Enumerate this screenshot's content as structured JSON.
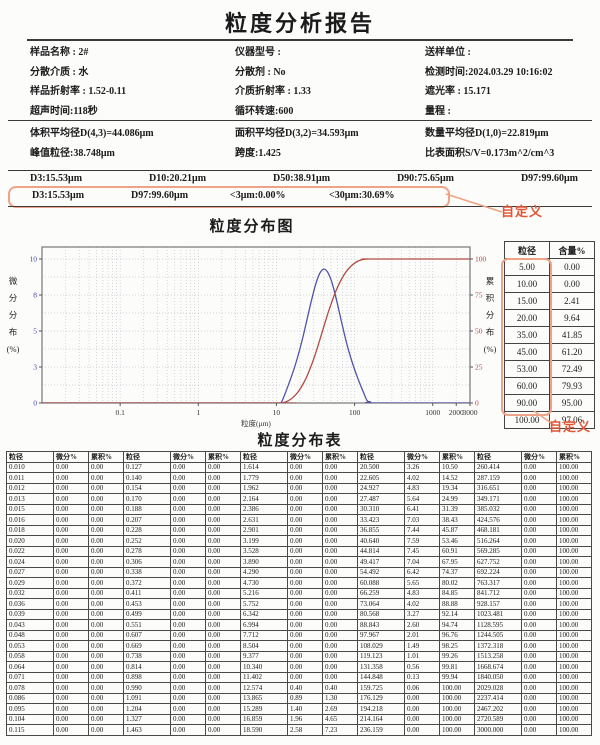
{
  "report": {
    "title": "粒度分析报告",
    "info_rows": [
      [
        "样品名称 : 2#",
        "仪器型号 :",
        "送样单位 :"
      ],
      [
        "分散介质 : 水",
        "分散剂 : No",
        "检测时间:2024.03.29 10:16:02"
      ],
      [
        "样品折射率 : 1.52-0.11",
        "介质折射率 : 1.33",
        "遮光率 : 15.171"
      ],
      [
        "超声时间:118秒",
        "循环转速:600",
        "量程 :"
      ]
    ],
    "summary_rows": [
      [
        "体积平均径D(4,3)=44.086μm",
        "面积平均径D(3,2)=34.593μm",
        "数量平均径D(1,0)=22.819μm"
      ],
      [
        "峰值粒径:38.748μm",
        "跨度:1.425",
        "比表面积S/V=0.173m^2/cm^3"
      ]
    ],
    "percentiles": [
      "D3:15.53μm",
      "D10:20.21μm",
      "D50:38.91μm",
      "D90:75.65μm",
      "D97:99.60μm"
    ],
    "custom_row": [
      "D3:15.53μm",
      "D97:99.60μm",
      "<3μm:0.00%",
      "<30μm:30.69%"
    ],
    "custom_label": "自定义"
  },
  "colors": {
    "accent_box": "#efa285",
    "accent_text": "#e25535",
    "curve_diff": "#5152a8",
    "curve_cum": "#b24b3f"
  },
  "chart_data": {
    "type": "line",
    "title": "粒度分布图",
    "xlabel": "粒度(μm)",
    "ylabel_left": "微分分布(%)",
    "ylabel_right": "累积分布(%)",
    "x_scale": "log",
    "xlim": [
      0.01,
      3000
    ],
    "x_ticks": [
      0.1,
      1,
      10,
      100,
      1000,
      2000,
      3000
    ],
    "ylim_left": [
      0,
      10
    ],
    "y_ticks_left": [
      [
        0,
        "0"
      ],
      [
        2.5,
        "3"
      ],
      [
        5,
        "5"
      ],
      [
        7.5,
        "8"
      ],
      [
        10,
        "10"
      ]
    ],
    "ylim_right": [
      0,
      100
    ],
    "y_ticks_right": [
      [
        0,
        "0"
      ],
      [
        25,
        "25"
      ],
      [
        50,
        "50"
      ],
      [
        75,
        "75"
      ],
      [
        100,
        "100"
      ]
    ],
    "grid": true,
    "legend": "none",
    "series": [
      {
        "name": "微分分布",
        "axis": "left",
        "color": "#5152a8",
        "x": [
          0.01,
          8.504,
          9.377,
          10.34,
          11.402,
          12.574,
          13.865,
          15.289,
          16.859,
          18.59,
          20.5,
          22.605,
          24.927,
          27.487,
          30.31,
          33.423,
          36.855,
          40.64,
          44.814,
          49.417,
          54.492,
          60.088,
          66.259,
          73.064,
          80.568,
          88.843,
          97.967,
          108.029,
          119.123,
          131.358,
          144.848,
          159.725,
          176.129,
          3000
        ],
        "values": [
          0,
          0,
          0,
          0,
          0,
          0.4,
          0.89,
          1.4,
          1.96,
          2.58,
          3.26,
          4.02,
          4.83,
          5.64,
          6.41,
          7.03,
          7.44,
          7.59,
          7.45,
          7.04,
          6.42,
          5.65,
          4.83,
          4.02,
          3.27,
          2.6,
          2.01,
          1.49,
          1.01,
          0.56,
          0.13,
          0.06,
          0,
          0
        ]
      },
      {
        "name": "累积分布",
        "axis": "right",
        "color": "#b24b3f",
        "x": [
          0.01,
          10.34,
          11.402,
          12.574,
          13.865,
          15.289,
          16.859,
          18.59,
          20.5,
          22.605,
          24.927,
          27.487,
          30.31,
          33.423,
          36.855,
          40.64,
          44.814,
          49.417,
          54.492,
          60.088,
          66.259,
          73.064,
          80.568,
          88.843,
          97.967,
          108.029,
          119.123,
          131.358,
          144.848,
          159.725,
          3000
        ],
        "values": [
          0,
          0,
          0,
          0.4,
          1.3,
          2.69,
          4.65,
          7.23,
          10.5,
          14.52,
          19.34,
          24.99,
          31.39,
          38.43,
          45.87,
          53.46,
          60.91,
          67.95,
          74.37,
          80.02,
          84.85,
          88.88,
          92.14,
          94.74,
          96.76,
          98.25,
          99.26,
          99.81,
          99.94,
          100,
          100
        ]
      }
    ]
  },
  "side_table": {
    "headers": [
      "粒径",
      "含量%"
    ],
    "rows": [
      [
        "5.00",
        "0.00"
      ],
      [
        "10.00",
        "0.00"
      ],
      [
        "15.00",
        "2.41"
      ],
      [
        "20.00",
        "9.64"
      ],
      [
        "35.00",
        "41.85"
      ],
      [
        "45.00",
        "61.20"
      ],
      [
        "53.00",
        "72.49"
      ],
      [
        "60.00",
        "79.93"
      ],
      [
        "90.00",
        "95.00"
      ],
      [
        "100.00",
        "97.06"
      ]
    ],
    "custom_label": "自定义"
  },
  "distribution_table": {
    "title": "粒度分布表",
    "col_headers": [
      "粒径",
      "微分%",
      "累积%"
    ],
    "groups": [
      {
        "sizes": [
          "0.010",
          "0.011",
          "0.012",
          "0.013",
          "0.015",
          "0.016",
          "0.018",
          "0.020",
          "0.022",
          "0.024",
          "0.027",
          "0.029",
          "0.032",
          "0.036",
          "0.039",
          "0.043",
          "0.048",
          "0.053",
          "0.058",
          "0.064",
          "0.071",
          "0.078",
          "0.086",
          "0.095",
          "0.104",
          "0.115"
        ],
        "diff": [
          "0.00",
          "0.00",
          "0.00",
          "0.00",
          "0.00",
          "0.00",
          "0.00",
          "0.00",
          "0.00",
          "0.00",
          "0.00",
          "0.00",
          "0.00",
          "0.00",
          "0.00",
          "0.00",
          "0.00",
          "0.00",
          "0.00",
          "0.00",
          "0.00",
          "0.00",
          "0.00",
          "0.00",
          "0.00",
          "0.00"
        ],
        "cum": [
          "0.00",
          "0.00",
          "0.00",
          "0.00",
          "0.00",
          "0.00",
          "0.00",
          "0.00",
          "0.00",
          "0.00",
          "0.00",
          "0.00",
          "0.00",
          "0.00",
          "0.00",
          "0.00",
          "0.00",
          "0.00",
          "0.00",
          "0.00",
          "0.00",
          "0.00",
          "0.00",
          "0.00",
          "0.00",
          "0.00"
        ]
      },
      {
        "sizes": [
          "0.127",
          "0.140",
          "0.154",
          "0.170",
          "0.188",
          "0.207",
          "0.228",
          "0.252",
          "0.278",
          "0.306",
          "0.338",
          "0.372",
          "0.411",
          "0.453",
          "0.499",
          "0.551",
          "0.607",
          "0.669",
          "0.738",
          "0.814",
          "0.898",
          "0.990",
          "1.091",
          "1.204",
          "1.327",
          "1.463"
        ],
        "diff": [
          "0.00",
          "0.00",
          "0.00",
          "0.00",
          "0.00",
          "0.00",
          "0.00",
          "0.00",
          "0.00",
          "0.00",
          "0.00",
          "0.00",
          "0.00",
          "0.00",
          "0.00",
          "0.00",
          "0.00",
          "0.00",
          "0.00",
          "0.00",
          "0.00",
          "0.00",
          "0.00",
          "0.00",
          "0.00",
          "0.00"
        ],
        "cum": [
          "0.00",
          "0.00",
          "0.00",
          "0.00",
          "0.00",
          "0.00",
          "0.00",
          "0.00",
          "0.00",
          "0.00",
          "0.00",
          "0.00",
          "0.00",
          "0.00",
          "0.00",
          "0.00",
          "0.00",
          "0.00",
          "0.00",
          "0.00",
          "0.00",
          "0.00",
          "0.00",
          "0.00",
          "0.00",
          "0.00"
        ]
      },
      {
        "sizes": [
          "1.614",
          "1.779",
          "1.962",
          "2.164",
          "2.386",
          "2.631",
          "2.901",
          "3.199",
          "3.528",
          "3.890",
          "4.290",
          "4.730",
          "5.216",
          "5.752",
          "6.342",
          "6.994",
          "7.712",
          "8.504",
          "9.377",
          "10.340",
          "11.402",
          "12.574",
          "13.865",
          "15.289",
          "16.859",
          "18.590"
        ],
        "diff": [
          "0.00",
          "0.00",
          "0.00",
          "0.00",
          "0.00",
          "0.00",
          "0.00",
          "0.00",
          "0.00",
          "0.00",
          "0.00",
          "0.00",
          "0.00",
          "0.00",
          "0.00",
          "0.00",
          "0.00",
          "0.00",
          "0.00",
          "0.00",
          "0.00",
          "0.40",
          "0.89",
          "1.40",
          "1.96",
          "2.58"
        ],
        "cum": [
          "0.00",
          "0.00",
          "0.00",
          "0.00",
          "0.00",
          "0.00",
          "0.00",
          "0.00",
          "0.00",
          "0.00",
          "0.00",
          "0.00",
          "0.00",
          "0.00",
          "0.00",
          "0.00",
          "0.00",
          "0.00",
          "0.00",
          "0.00",
          "0.00",
          "0.40",
          "1.30",
          "2.69",
          "4.65",
          "7.23"
        ]
      },
      {
        "sizes": [
          "20.500",
          "22.605",
          "24.927",
          "27.487",
          "30.310",
          "33.423",
          "36.855",
          "40.640",
          "44.814",
          "49.417",
          "54.492",
          "60.088",
          "66.259",
          "73.064",
          "80.568",
          "88.843",
          "97.967",
          "108.029",
          "119.123",
          "131.358",
          "144.848",
          "159.725",
          "176.129",
          "194.218",
          "214.164",
          "236.159"
        ],
        "diff": [
          "3.26",
          "4.02",
          "4.83",
          "5.64",
          "6.41",
          "7.03",
          "7.44",
          "7.59",
          "7.45",
          "7.04",
          "6.42",
          "5.65",
          "4.83",
          "4.02",
          "3.27",
          "2.60",
          "2.01",
          "1.49",
          "1.01",
          "0.56",
          "0.13",
          "0.06",
          "0.00",
          "0.00",
          "0.00",
          "0.00"
        ],
        "cum": [
          "10.50",
          "14.52",
          "19.34",
          "24.99",
          "31.39",
          "38.43",
          "45.87",
          "53.46",
          "60.91",
          "67.95",
          "74.37",
          "80.02",
          "84.85",
          "88.88",
          "92.14",
          "94.74",
          "96.76",
          "98.25",
          "99.26",
          "99.81",
          "99.94",
          "100.00",
          "100.00",
          "100.00",
          "100.00",
          "100.00"
        ]
      },
      {
        "sizes": [
          "260.414",
          "287.159",
          "316.651",
          "349.171",
          "385.032",
          "424.576",
          "468.181",
          "516.264",
          "569.285",
          "627.752",
          "692.224",
          "763.317",
          "841.712",
          "928.157",
          "1023.481",
          "1128.595",
          "1244.505",
          "1372.318",
          "1513.258",
          "1668.674",
          "1840.050",
          "2029.028",
          "2237.414",
          "2467.202",
          "2720.589",
          "3000.000"
        ],
        "diff": [
          "0.00",
          "0.00",
          "0.00",
          "0.00",
          "0.00",
          "0.00",
          "0.00",
          "0.00",
          "0.00",
          "0.00",
          "0.00",
          "0.00",
          "0.00",
          "0.00",
          "0.00",
          "0.00",
          "0.00",
          "0.00",
          "0.00",
          "0.00",
          "0.00",
          "0.00",
          "0.00",
          "0.00",
          "0.00",
          "0.00"
        ],
        "cum": [
          "100.00",
          "100.00",
          "100.00",
          "100.00",
          "100.00",
          "100.00",
          "100.00",
          "100.00",
          "100.00",
          "100.00",
          "100.00",
          "100.00",
          "100.00",
          "100.00",
          "100.00",
          "100.00",
          "100.00",
          "100.00",
          "100.00",
          "100.00",
          "100.00",
          "100.00",
          "100.00",
          "100.00",
          "100.00",
          "100.00"
        ]
      }
    ]
  }
}
